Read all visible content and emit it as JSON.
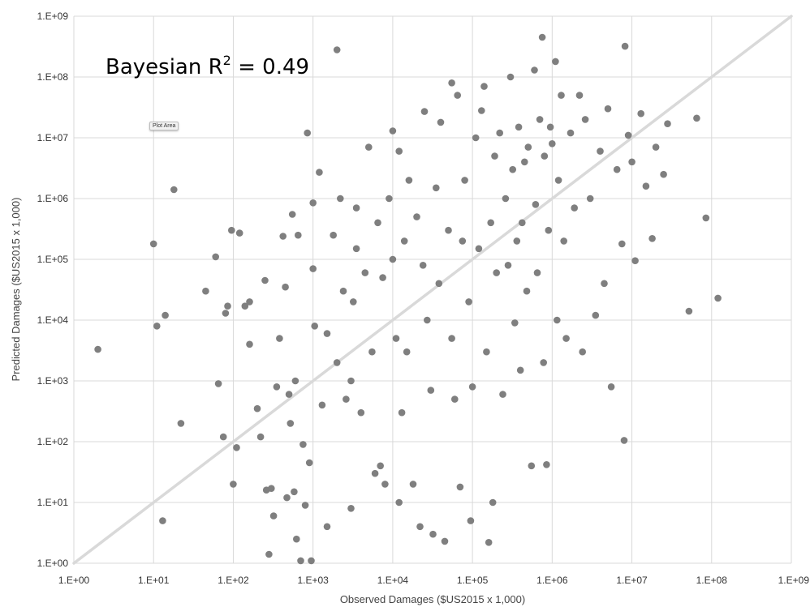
{
  "chart_data": {
    "type": "scatter",
    "title": "",
    "xlabel": "Observed Damages ($US2015 x 1,000)",
    "ylabel": "Predicted Damages ($US2015 x 1,000)",
    "x_scale": "log10",
    "y_scale": "log10",
    "xlim": [
      1,
      1000000000
    ],
    "ylim": [
      1,
      1000000000
    ],
    "x_ticks": [
      "1.E+00",
      "1.E+01",
      "1.E+02",
      "1.E+03",
      "1.E+04",
      "1.E+05",
      "1.E+06",
      "1.E+07",
      "1.E+08",
      "1.E+09"
    ],
    "y_ticks": [
      "1.E+00",
      "1.E+01",
      "1.E+02",
      "1.E+03",
      "1.E+04",
      "1.E+05",
      "1.E+06",
      "1.E+07",
      "1.E+08",
      "1.E+09"
    ],
    "grid": true,
    "legend": "none",
    "annotation": {
      "prefix": "Bayesian R",
      "sup": "2",
      "suffix": " = 0.49"
    },
    "tooltip": "Plot Area",
    "reference_line": {
      "from": [
        1,
        1
      ],
      "to": [
        1000000000,
        1000000000
      ],
      "color": "#d9d9d9"
    },
    "point_color": "#7f7f7f",
    "note": "Approximately 800 plotted points; the coordinates listed are a representative sample estimated from the figure.",
    "points": [
      [
        2,
        3300
      ],
      [
        10,
        180000
      ],
      [
        11,
        8000
      ],
      [
        13,
        5
      ],
      [
        14,
        12000
      ],
      [
        18,
        1400000
      ],
      [
        22,
        200
      ],
      [
        45,
        30000
      ],
      [
        60,
        110000
      ],
      [
        65,
        900
      ],
      [
        75,
        120
      ],
      [
        80,
        13000
      ],
      [
        85,
        17000
      ],
      [
        95,
        300000
      ],
      [
        100,
        20
      ],
      [
        110,
        80
      ],
      [
        120,
        270000
      ],
      [
        140,
        17000
      ],
      [
        160,
        20000
      ],
      [
        160,
        4000
      ],
      [
        200,
        350
      ],
      [
        220,
        120
      ],
      [
        250,
        45000
      ],
      [
        260,
        16
      ],
      [
        280,
        1.4
      ],
      [
        300,
        17
      ],
      [
        320,
        6
      ],
      [
        350,
        800
      ],
      [
        380,
        5000
      ],
      [
        420,
        240000
      ],
      [
        450,
        35000
      ],
      [
        470,
        12
      ],
      [
        500,
        600
      ],
      [
        520,
        200
      ],
      [
        550,
        550000
      ],
      [
        580,
        15
      ],
      [
        600,
        1000
      ],
      [
        620,
        2.5
      ],
      [
        650,
        250000
      ],
      [
        700,
        1.1
      ],
      [
        750,
        90
      ],
      [
        800,
        9
      ],
      [
        850,
        12000000
      ],
      [
        900,
        45
      ],
      [
        950,
        1.1
      ],
      [
        1000,
        850000
      ],
      [
        1000,
        70000
      ],
      [
        1050,
        8000
      ],
      [
        1200,
        2700000
      ],
      [
        1300,
        400
      ],
      [
        1500,
        4
      ],
      [
        1500,
        6000
      ],
      [
        1800,
        250000
      ],
      [
        2000,
        280000000
      ],
      [
        2000,
        2000
      ],
      [
        2200,
        1000000
      ],
      [
        2400,
        30000
      ],
      [
        2600,
        500
      ],
      [
        3000,
        8
      ],
      [
        3000,
        1000
      ],
      [
        3200,
        20000
      ],
      [
        3500,
        150000
      ],
      [
        3500,
        700000
      ],
      [
        4000,
        300
      ],
      [
        4500,
        60000
      ],
      [
        5000,
        7000000
      ],
      [
        5500,
        3000
      ],
      [
        6000,
        30
      ],
      [
        6500,
        400000
      ],
      [
        7000,
        40
      ],
      [
        7500,
        50000
      ],
      [
        8000,
        20
      ],
      [
        9000,
        1000000
      ],
      [
        10000,
        13000000
      ],
      [
        10000,
        100000
      ],
      [
        11000,
        5000
      ],
      [
        12000,
        10
      ],
      [
        12000,
        6000000
      ],
      [
        13000,
        300
      ],
      [
        14000,
        200000
      ],
      [
        15000,
        3000
      ],
      [
        16000,
        2000000
      ],
      [
        18000,
        20
      ],
      [
        20000,
        500000
      ],
      [
        22000,
        4
      ],
      [
        24000,
        80000
      ],
      [
        25000,
        27000000
      ],
      [
        27000,
        10000
      ],
      [
        30000,
        700
      ],
      [
        32000,
        3
      ],
      [
        35000,
        1500000
      ],
      [
        38000,
        40000
      ],
      [
        40000,
        18000000
      ],
      [
        45000,
        2.3
      ],
      [
        50000,
        300000
      ],
      [
        55000,
        80000000
      ],
      [
        55000,
        5000
      ],
      [
        60000,
        500
      ],
      [
        65000,
        50000000
      ],
      [
        70000,
        18
      ],
      [
        75000,
        200000
      ],
      [
        80000,
        2000000
      ],
      [
        90000,
        20000
      ],
      [
        95000,
        5
      ],
      [
        100000,
        800
      ],
      [
        110000,
        10000000
      ],
      [
        120000,
        150000
      ],
      [
        130000,
        28000000
      ],
      [
        140000,
        70000000
      ],
      [
        150000,
        3000
      ],
      [
        160000,
        2.2
      ],
      [
        170000,
        400000
      ],
      [
        180000,
        10
      ],
      [
        190000,
        5000000
      ],
      [
        200000,
        60000
      ],
      [
        220000,
        12000000
      ],
      [
        240000,
        600
      ],
      [
        260000,
        1000000
      ],
      [
        280000,
        80000
      ],
      [
        300000,
        100000000
      ],
      [
        320000,
        3000000
      ],
      [
        340000,
        9000
      ],
      [
        360000,
        200000
      ],
      [
        380000,
        15000000
      ],
      [
        400000,
        1500
      ],
      [
        420000,
        400000
      ],
      [
        450000,
        4000000
      ],
      [
        480000,
        30000
      ],
      [
        500000,
        7000000
      ],
      [
        550000,
        40
      ],
      [
        600000,
        130000000
      ],
      [
        620000,
        800000
      ],
      [
        650000,
        60000
      ],
      [
        700000,
        20000000
      ],
      [
        750000,
        450000000
      ],
      [
        780000,
        2000
      ],
      [
        800000,
        5000000
      ],
      [
        850000,
        42
      ],
      [
        900000,
        300000
      ],
      [
        950000,
        15000000
      ],
      [
        1000000,
        8000000
      ],
      [
        1100000,
        180000000
      ],
      [
        1150000,
        10000
      ],
      [
        1200000,
        2000000
      ],
      [
        1300000,
        50000000
      ],
      [
        1400000,
        200000
      ],
      [
        1500000,
        5000
      ],
      [
        1700000,
        12000000
      ],
      [
        1900000,
        700000
      ],
      [
        2200000,
        50000000
      ],
      [
        2400000,
        3000
      ],
      [
        2600000,
        20000000
      ],
      [
        3000000,
        1000000
      ],
      [
        3500000,
        12000
      ],
      [
        4000000,
        6000000
      ],
      [
        4500000,
        40000
      ],
      [
        5000000,
        30000000
      ],
      [
        5500000,
        800
      ],
      [
        6500000,
        3000000
      ],
      [
        7500000,
        180000
      ],
      [
        8000000,
        105
      ],
      [
        8200000,
        320000000
      ],
      [
        9000000,
        11000000
      ],
      [
        10000000,
        4000000
      ],
      [
        11000000,
        95000
      ],
      [
        13000000,
        25000000
      ],
      [
        15000000,
        1600000
      ],
      [
        18000000,
        220000
      ],
      [
        20000000,
        7000000
      ],
      [
        25000000,
        2500000
      ],
      [
        28000000,
        17000000
      ],
      [
        52000000,
        14000
      ],
      [
        65000000,
        21000000
      ],
      [
        85000000,
        480000
      ],
      [
        120000000,
        23000
      ]
    ]
  }
}
